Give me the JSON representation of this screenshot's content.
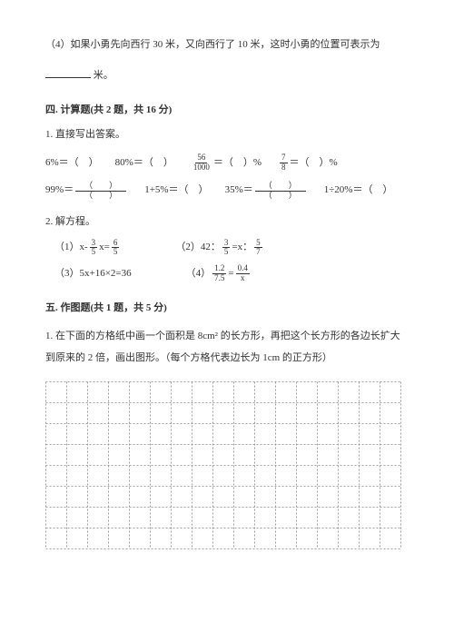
{
  "q4": {
    "text_a": "（4）如果小勇先向西行 30 米，又向西行了 10 米，这时小勇的位置可表示为",
    "text_b": "米。"
  },
  "sec4": {
    "title": "四. 计算题(共 2 题，共 16 分)",
    "q1_label": "1. 直接写出答案。",
    "row1": {
      "c1_a": "6%＝（　）",
      "c2_a": "80%＝（　）",
      "c3_num": "56",
      "c3_den": "1000",
      "c3_tail": "＝（　）%",
      "c4_num": "7",
      "c4_den": "8",
      "c4_tail": "＝（　）%"
    },
    "row2": {
      "c1_a": "99%＝",
      "c1_num": "（　　）",
      "c1_den": "（　　）",
      "c2_a": "1+5%＝（　）",
      "c3_a": "35%＝",
      "c3_num": "（　　）",
      "c3_den": "（　　）",
      "c4_a": "1÷20%＝（　）"
    },
    "q2_label": "2. 解方程。",
    "eq1_a": "（1）x-",
    "eq1_num1": "3",
    "eq1_den1": "5",
    "eq1_mid": " x=",
    "eq1_num2": "6",
    "eq1_den2": "5",
    "eq2_a": "（2）42：",
    "eq2_num1": "3",
    "eq2_den1": "5",
    "eq2_mid": " =x：",
    "eq2_num2": "5",
    "eq2_den2": "7",
    "eq3_a": "（3）5x+16×2=36",
    "eq4_a": "（4）",
    "eq4_num1": "1.2",
    "eq4_den1": "7.5",
    "eq4_mid": " = ",
    "eq4_num2": "0.4",
    "eq4_den2": "x"
  },
  "sec5": {
    "title": "五. 作图题(共 1 题，共 5 分)",
    "q1": "1. 在下面的方格纸中画一个面积是 8cm² 的长方形，再把这个长方形的各边长扩大到原来的 2 倍，画出图形。（每个方格代表边长为 1cm 的正方形）"
  },
  "grid": {
    "cols": 17,
    "rows": 8,
    "cell": 23,
    "stroke": "#888888",
    "dash": "2,2",
    "stroke_width": 0.8
  }
}
